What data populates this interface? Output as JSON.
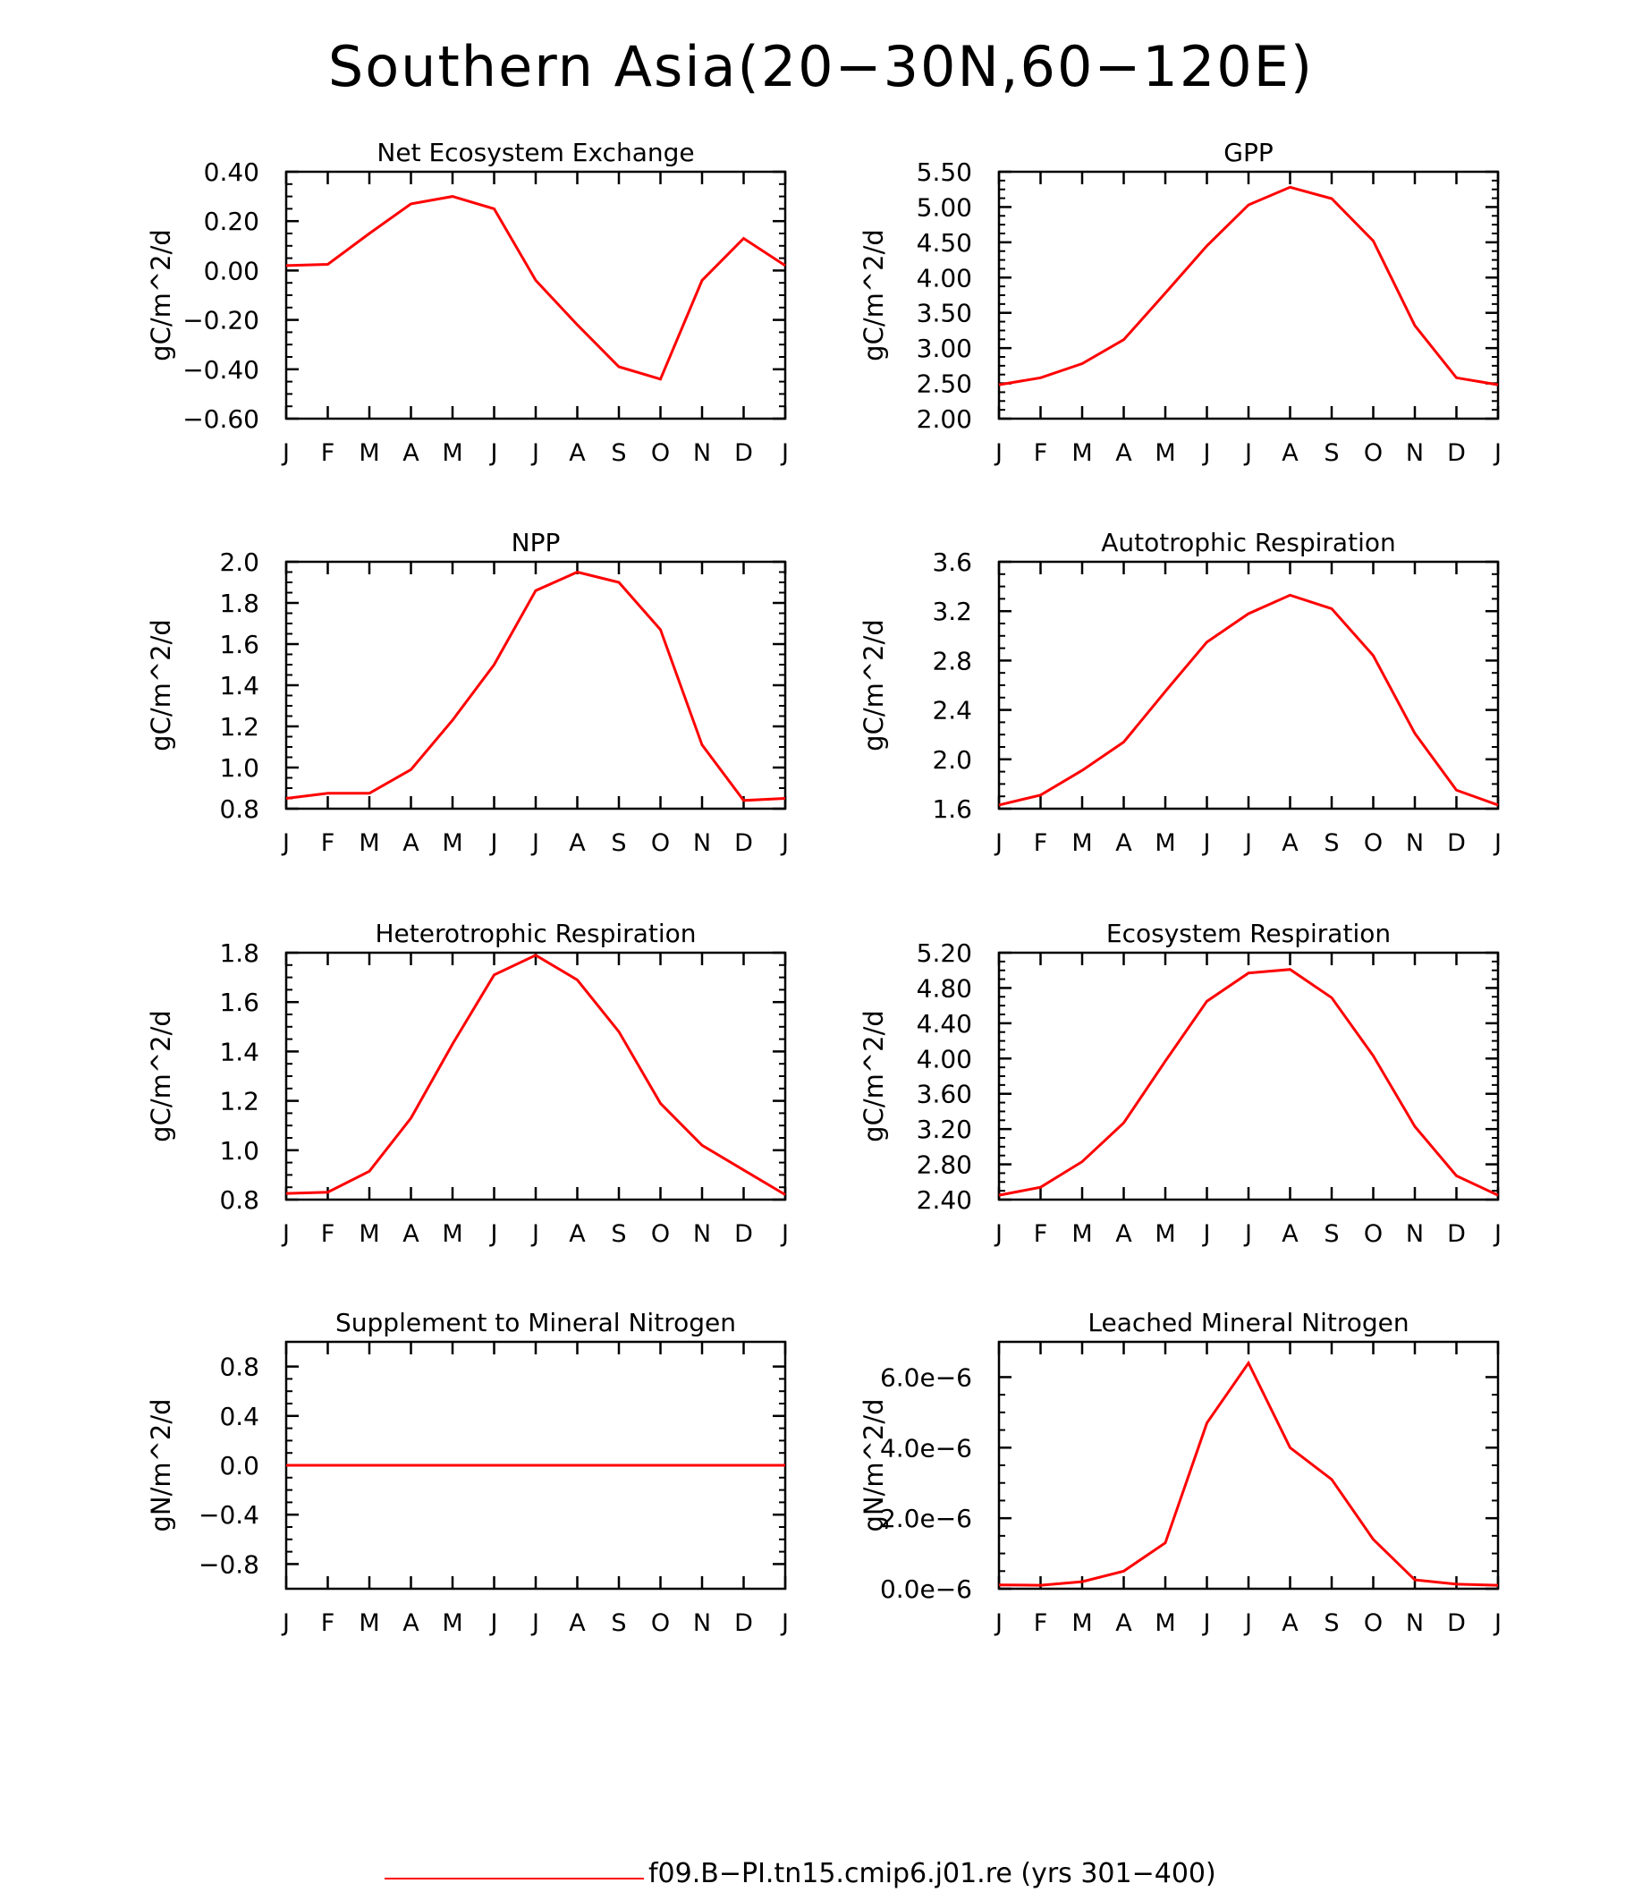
{
  "title": "Southern Asia(20−30N,60−120E)",
  "months": [
    "J",
    "F",
    "M",
    "A",
    "M",
    "J",
    "J",
    "A",
    "S",
    "O",
    "N",
    "D",
    "J"
  ],
  "line_color": "#ff0000",
  "legend": {
    "label": "f09.B−PI.tn15.cmip6.j01.re (yrs 301−400)"
  },
  "chart_data": [
    {
      "type": "line",
      "title": "Net Ecosystem Exchange",
      "ylabel": "gC/m^2/d",
      "ylim": [
        -0.6,
        0.4
      ],
      "yticks": [
        -0.6,
        -0.4,
        -0.2,
        0.0,
        0.2,
        0.4
      ],
      "yticklabels": [
        "−0.60",
        "−0.40",
        "−0.20",
        "0.00",
        "0.20",
        "0.40"
      ],
      "series": [
        {
          "values": [
            0.02,
            0.025,
            0.15,
            0.27,
            0.3,
            0.25,
            -0.04,
            -0.22,
            -0.39,
            -0.44,
            -0.04,
            0.13,
            0.02
          ]
        }
      ]
    },
    {
      "type": "line",
      "title": "GPP",
      "ylabel": "gC/m^2/d",
      "ylim": [
        2.0,
        5.5
      ],
      "yticks": [
        2.0,
        2.5,
        3.0,
        3.5,
        4.0,
        4.5,
        5.0,
        5.5
      ],
      "yticklabels": [
        "2.00",
        "2.50",
        "3.00",
        "3.50",
        "4.00",
        "4.50",
        "5.00",
        "5.50"
      ],
      "series": [
        {
          "values": [
            2.48,
            2.58,
            2.78,
            3.12,
            3.78,
            4.45,
            5.03,
            5.28,
            5.12,
            4.52,
            3.32,
            2.58,
            2.48
          ]
        }
      ]
    },
    {
      "type": "line",
      "title": "NPP",
      "ylabel": "gC/m^2/d",
      "ylim": [
        0.8,
        2.0
      ],
      "yticks": [
        0.8,
        1.0,
        1.2,
        1.4,
        1.6,
        1.8,
        2.0
      ],
      "yticklabels": [
        "0.8",
        "1.0",
        "1.2",
        "1.4",
        "1.6",
        "1.8",
        "2.0"
      ],
      "series": [
        {
          "values": [
            0.85,
            0.875,
            0.875,
            0.99,
            1.23,
            1.5,
            1.86,
            1.95,
            1.9,
            1.67,
            1.11,
            0.84,
            0.85
          ]
        }
      ]
    },
    {
      "type": "line",
      "title": "Autotrophic Respiration",
      "ylabel": "gC/m^2/d",
      "ylim": [
        1.6,
        3.6
      ],
      "yticks": [
        1.6,
        2.0,
        2.4,
        2.8,
        3.2,
        3.6
      ],
      "yticklabels": [
        "1.6",
        "2.0",
        "2.4",
        "2.8",
        "3.2",
        "3.6"
      ],
      "series": [
        {
          "values": [
            1.63,
            1.71,
            1.91,
            2.14,
            2.55,
            2.95,
            3.18,
            3.33,
            3.22,
            2.84,
            2.21,
            1.75,
            1.63
          ]
        }
      ]
    },
    {
      "type": "line",
      "title": "Heterotrophic Respiration",
      "ylabel": "gC/m^2/d",
      "ylim": [
        0.8,
        1.8
      ],
      "yticks": [
        0.8,
        1.0,
        1.2,
        1.4,
        1.6,
        1.8
      ],
      "yticklabels": [
        "0.8",
        "1.0",
        "1.2",
        "1.4",
        "1.6",
        "1.8"
      ],
      "series": [
        {
          "values": [
            0.825,
            0.83,
            0.915,
            1.13,
            1.43,
            1.71,
            1.79,
            1.69,
            1.48,
            1.19,
            1.02,
            0.92,
            0.82
          ]
        }
      ]
    },
    {
      "type": "line",
      "title": "Ecosystem Respiration",
      "ylabel": "gC/m^2/d",
      "ylim": [
        2.4,
        5.2
      ],
      "yticks": [
        2.4,
        2.8,
        3.2,
        3.6,
        4.0,
        4.4,
        4.8,
        5.2
      ],
      "yticklabels": [
        "2.40",
        "2.80",
        "3.20",
        "3.60",
        "4.00",
        "4.40",
        "4.80",
        "5.20"
      ],
      "series": [
        {
          "values": [
            2.45,
            2.54,
            2.83,
            3.27,
            3.97,
            4.65,
            4.97,
            5.01,
            4.69,
            4.03,
            3.23,
            2.67,
            2.45
          ]
        }
      ]
    },
    {
      "type": "line",
      "title": "Supplement to Mineral Nitrogen",
      "ylabel": "gN/m^2/d",
      "ylim": [
        -1.0,
        1.0
      ],
      "yticks": [
        -0.8,
        -0.4,
        0.0,
        0.4,
        0.8
      ],
      "yticklabels": [
        "−0.8",
        "−0.4",
        "0.0",
        "0.4",
        "0.8"
      ],
      "series": [
        {
          "values": [
            0,
            0,
            0,
            0,
            0,
            0,
            0,
            0,
            0,
            0,
            0,
            0,
            0
          ]
        }
      ]
    },
    {
      "type": "line",
      "title": "Leached Mineral Nitrogen",
      "ylabel": "gN/m^2/d",
      "ylim": [
        0.0,
        7e-06
      ],
      "yticks": [
        0.0,
        2e-06,
        4e-06,
        6e-06
      ],
      "yticklabels": [
        "0.0e−6",
        "2.0e−6",
        "4.0e−6",
        "6.0e−6"
      ],
      "series": [
        {
          "values": [
            1.1e-07,
            1e-07,
            2e-07,
            5e-07,
            1.3e-06,
            4.7e-06,
            6.4e-06,
            4e-06,
            3.1e-06,
            1.4e-06,
            2.5e-07,
            1.3e-07,
            1e-07
          ]
        }
      ]
    }
  ]
}
